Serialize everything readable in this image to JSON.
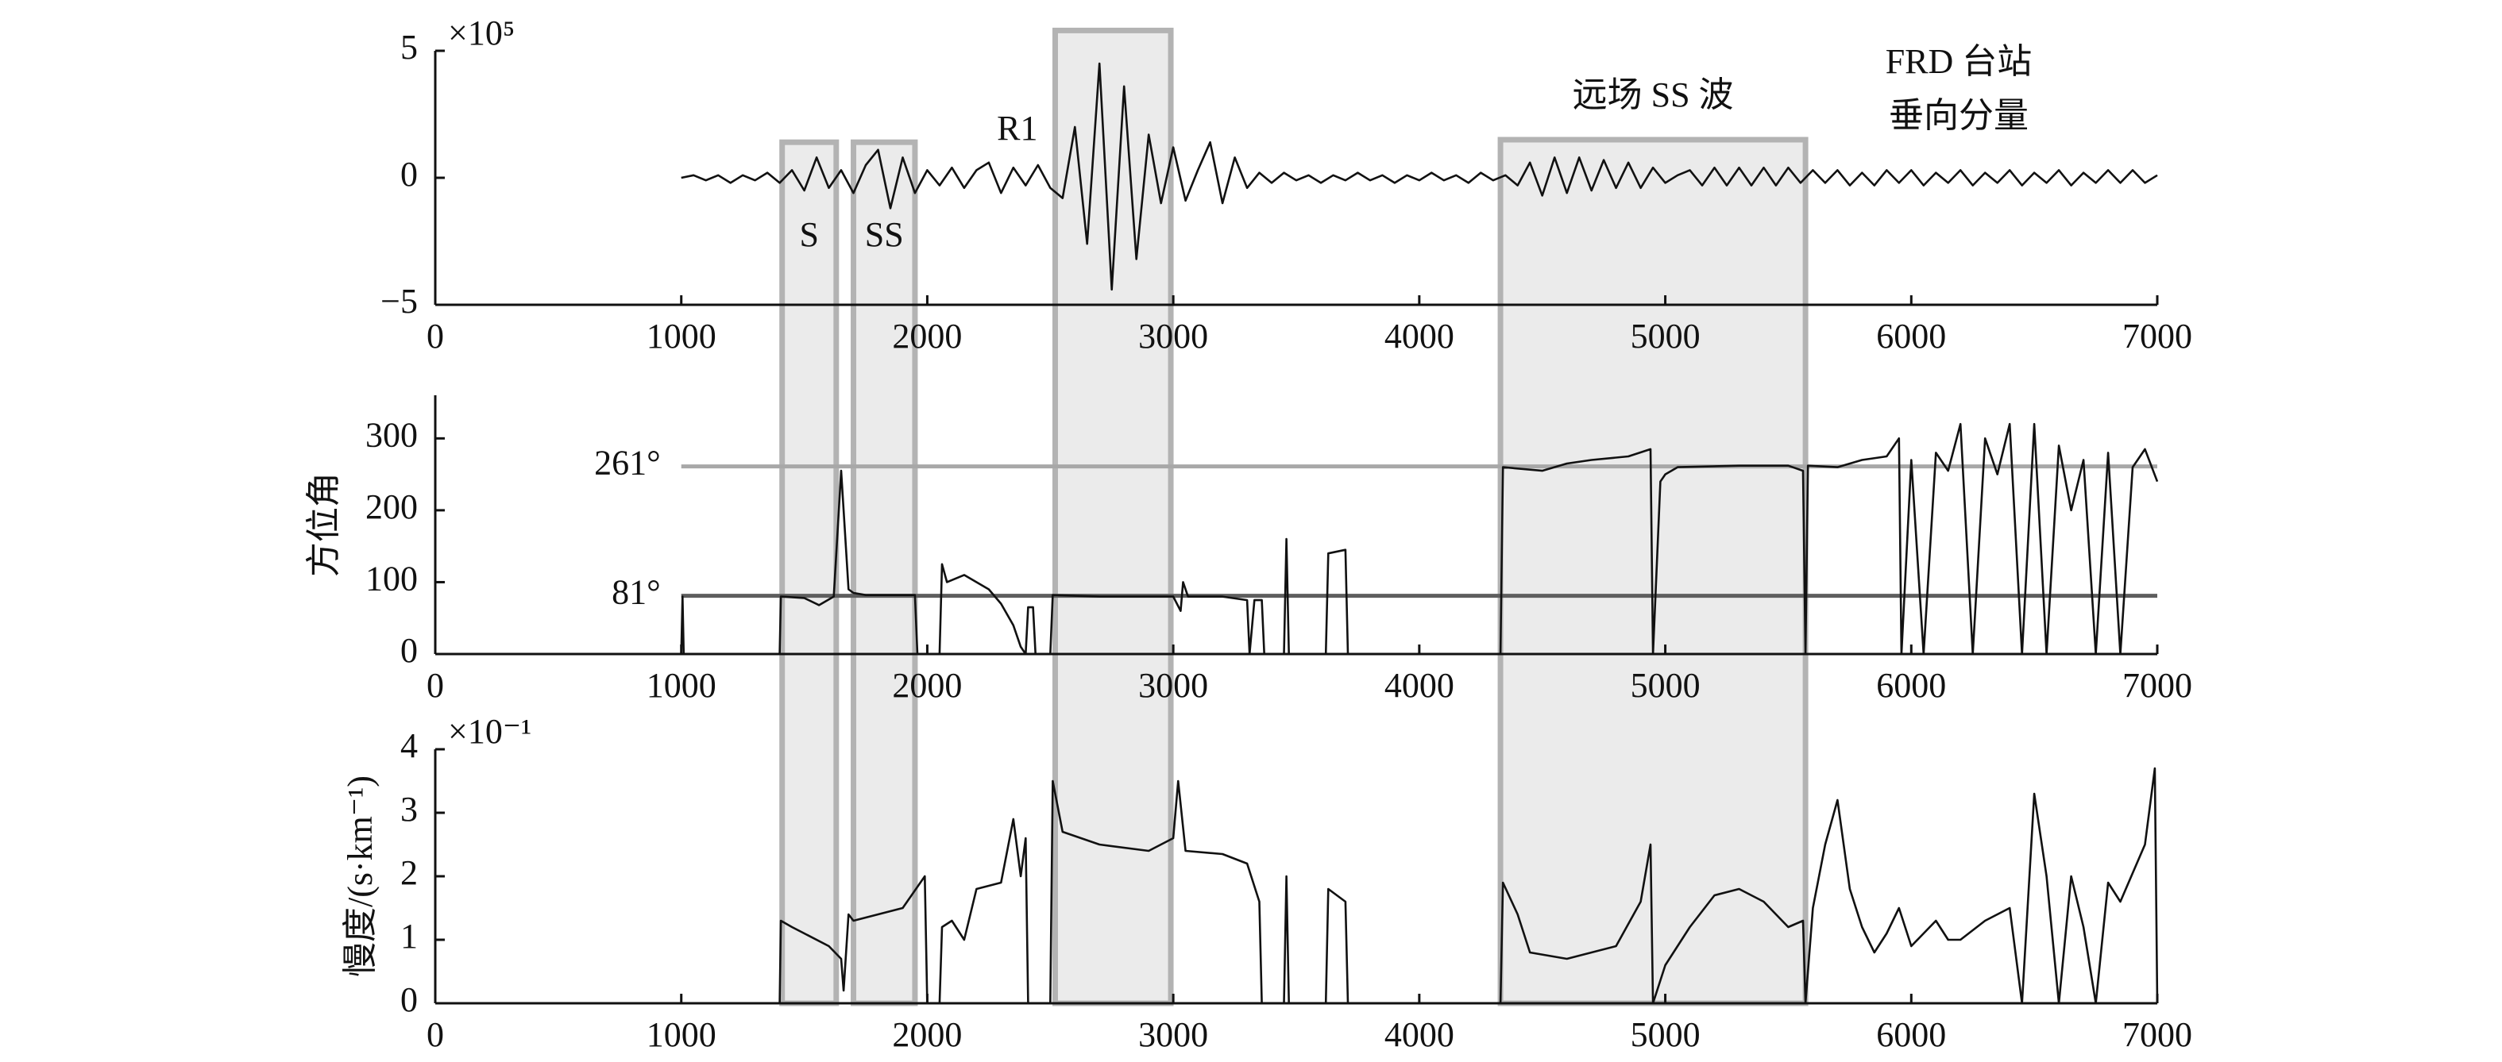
{
  "chart_data": [
    {
      "type": "line",
      "title_lines": [
        "FRD 台站",
        "垂向分量"
      ],
      "y_multiplier": "×10⁵",
      "color": "#111111",
      "xlim": [
        0,
        7000
      ],
      "xticks": [
        0,
        1000,
        2000,
        3000,
        4000,
        5000,
        6000,
        7000
      ],
      "ylim": [
        -5,
        5
      ],
      "yticks": [
        {
          "value": -5,
          "label": "−5"
        },
        0,
        5
      ],
      "x": [
        1000,
        1050,
        1100,
        1150,
        1200,
        1250,
        1300,
        1350,
        1400,
        1450,
        1500,
        1550,
        1600,
        1650,
        1700,
        1750,
        1800,
        1850,
        1900,
        1950,
        2000,
        2050,
        2100,
        2150,
        2200,
        2250,
        2300,
        2350,
        2400,
        2450,
        2500,
        2550,
        2600,
        2650,
        2700,
        2750,
        2800,
        2850,
        2900,
        2950,
        3000,
        3050,
        3100,
        3150,
        3200,
        3250,
        3300,
        3350,
        3400,
        3450,
        3500,
        3550,
        3600,
        3650,
        3700,
        3750,
        3800,
        3850,
        3900,
        3950,
        4000,
        4050,
        4100,
        4150,
        4200,
        4250,
        4300,
        4350,
        4400,
        4450,
        4500,
        4550,
        4600,
        4650,
        4700,
        4750,
        4800,
        4850,
        4900,
        4950,
        5000,
        5050,
        5100,
        5150,
        5200,
        5250,
        5300,
        5350,
        5400,
        5450,
        5500,
        5550,
        5600,
        5650,
        5700,
        5750,
        5800,
        5850,
        5900,
        5950,
        6000,
        6050,
        6100,
        6150,
        6200,
        6250,
        6300,
        6350,
        6400,
        6450,
        6500,
        6550,
        6600,
        6650,
        6700,
        6750,
        6800,
        6850,
        6900,
        6950,
        7000
      ],
      "values": [
        0,
        0.1,
        -0.1,
        0.1,
        -0.2,
        0.1,
        -0.1,
        0.2,
        -0.2,
        0.3,
        -0.5,
        0.8,
        -0.4,
        0.3,
        -0.6,
        0.5,
        1.1,
        -1.2,
        0.8,
        -0.6,
        0.3,
        -0.3,
        0.4,
        -0.4,
        0.3,
        0.6,
        -0.6,
        0.4,
        -0.3,
        0.5,
        -0.4,
        -0.8,
        2.0,
        -2.6,
        4.5,
        -4.4,
        3.6,
        -3.2,
        1.7,
        -1.0,
        1.2,
        -0.9,
        0.3,
        1.4,
        -1.0,
        0.8,
        -0.4,
        0.2,
        -0.2,
        0.2,
        -0.1,
        0.1,
        -0.2,
        0.1,
        -0.1,
        0.2,
        -0.1,
        0.1,
        -0.2,
        0.1,
        -0.1,
        0.2,
        -0.1,
        0.1,
        -0.2,
        0.2,
        -0.1,
        0.1,
        -0.3,
        0.6,
        -0.7,
        0.8,
        -0.6,
        0.8,
        -0.5,
        0.7,
        -0.4,
        0.6,
        -0.4,
        0.4,
        -0.2,
        0.1,
        0.3,
        -0.3,
        0.4,
        -0.3,
        0.4,
        -0.3,
        0.4,
        -0.3,
        0.4,
        -0.2,
        0.3,
        -0.2,
        0.3,
        -0.3,
        0.2,
        -0.3,
        0.3,
        -0.2,
        0.3,
        -0.3,
        0.2,
        -0.2,
        0.3,
        -0.3,
        0.2,
        -0.2,
        0.3,
        -0.3,
        0.2,
        -0.2,
        0.3,
        -0.3,
        0.2,
        -0.2,
        0.3,
        -0.2,
        0.3,
        -0.2,
        0.1
      ],
      "regions": [
        {
          "label": "S",
          "x": [
            1410,
            1630
          ],
          "top": 1.4,
          "label_position": "inside"
        },
        {
          "label": "SS",
          "x": [
            1700,
            1950
          ],
          "top": 1.4,
          "label_position": "inside"
        },
        {
          "label": "R1",
          "x": [
            2520,
            2990
          ],
          "top": 5.8,
          "label_position": "left"
        },
        {
          "label": "远场 SS 波",
          "x": [
            4330,
            5570
          ],
          "top": 1.5,
          "label_position": "above"
        }
      ]
    },
    {
      "type": "line",
      "ylabel": "方位角",
      "color": "#111111",
      "xlim": [
        0,
        7000
      ],
      "xticks": [
        0,
        1000,
        2000,
        3000,
        4000,
        5000,
        6000,
        7000
      ],
      "ylim": [
        0,
        360
      ],
      "yticks": [
        0,
        100,
        200,
        300
      ],
      "reference_lines": [
        {
          "value": 261,
          "label": "261°",
          "x": [
            1000,
            7000
          ],
          "color": "#a8a8a8"
        },
        {
          "value": 81,
          "label": "81°",
          "x": [
            1000,
            7000
          ],
          "color": "#5e5e5e"
        }
      ],
      "x": [
        1000,
        1005,
        1010,
        1400,
        1405,
        1500,
        1560,
        1620,
        1650,
        1680,
        1700,
        1750,
        1950,
        1960,
        2050,
        2060,
        2080,
        2150,
        2250,
        2300,
        2350,
        2380,
        2400,
        2410,
        2430,
        2440,
        2500,
        2510,
        2700,
        3000,
        3030,
        3040,
        3060,
        3200,
        3300,
        3310,
        3330,
        3360,
        3370,
        3450,
        3460,
        3470,
        3620,
        3630,
        3700,
        3710,
        4330,
        4340,
        4500,
        4600,
        4700,
        4850,
        4940,
        4950,
        4980,
        5000,
        5050,
        5300,
        5500,
        5560,
        5570,
        5580,
        5700,
        5800,
        5900,
        5950,
        5960,
        6000,
        6050,
        6100,
        6150,
        6200,
        6250,
        6300,
        6350,
        6400,
        6450,
        6500,
        6550,
        6600,
        6650,
        6700,
        6750,
        6800,
        6850,
        6900,
        6950,
        7000
      ],
      "values": [
        0,
        80,
        0,
        0,
        80,
        78,
        68,
        80,
        255,
        90,
        85,
        82,
        82,
        0,
        0,
        125,
        100,
        110,
        90,
        70,
        40,
        10,
        0,
        65,
        65,
        0,
        0,
        82,
        80,
        80,
        60,
        100,
        80,
        80,
        75,
        0,
        75,
        75,
        0,
        0,
        160,
        0,
        0,
        140,
        145,
        0,
        0,
        260,
        255,
        265,
        270,
        275,
        285,
        0,
        240,
        250,
        260,
        262,
        262,
        255,
        0,
        262,
        260,
        270,
        275,
        300,
        0,
        270,
        0,
        280,
        255,
        320,
        0,
        300,
        250,
        320,
        0,
        320,
        0,
        290,
        200,
        270,
        0,
        280,
        0,
        260,
        285,
        240
      ]
    },
    {
      "type": "line",
      "ylabel": "慢度/(s·km⁻¹)",
      "y_multiplier": "×10⁻¹",
      "color": "#111111",
      "xlim": [
        0,
        7000
      ],
      "xticks": [
        0,
        1000,
        2000,
        3000,
        4000,
        5000,
        6000,
        7000
      ],
      "ylim": [
        0,
        4
      ],
      "yticks": [
        0,
        1,
        2,
        3,
        4
      ],
      "x": [
        1400,
        1405,
        1450,
        1500,
        1600,
        1650,
        1660,
        1680,
        1700,
        1800,
        1900,
        1990,
        2000,
        2050,
        2060,
        2100,
        2150,
        2200,
        2300,
        2350,
        2380,
        2400,
        2410,
        2500,
        2510,
        2550,
        2700,
        2900,
        3000,
        3020,
        3050,
        3200,
        3300,
        3350,
        3360,
        3450,
        3460,
        3470,
        3620,
        3630,
        3700,
        3710,
        4330,
        4340,
        4400,
        4450,
        4600,
        4800,
        4900,
        4940,
        4950,
        5000,
        5100,
        5200,
        5300,
        5400,
        5500,
        5560,
        5570,
        5600,
        5650,
        5700,
        5750,
        5800,
        5850,
        5900,
        5950,
        6000,
        6050,
        6100,
        6150,
        6200,
        6300,
        6400,
        6450,
        6500,
        6550,
        6600,
        6650,
        6700,
        6750,
        6800,
        6850,
        6950,
        6990,
        7000
      ],
      "values": [
        0,
        1.3,
        1.2,
        1.1,
        0.9,
        0.7,
        0.2,
        1.4,
        1.3,
        1.4,
        1.5,
        2.0,
        0,
        0,
        1.2,
        1.3,
        1.0,
        1.8,
        1.9,
        2.9,
        2.0,
        2.6,
        0,
        0,
        3.5,
        2.7,
        2.5,
        2.4,
        2.6,
        3.5,
        2.4,
        2.35,
        2.2,
        1.6,
        0,
        0,
        2.0,
        0,
        0,
        1.8,
        1.6,
        0,
        0,
        1.9,
        1.4,
        0.8,
        0.7,
        0.9,
        1.6,
        2.5,
        0,
        0.6,
        1.2,
        1.7,
        1.8,
        1.6,
        1.2,
        1.3,
        0,
        1.5,
        2.5,
        3.2,
        1.8,
        1.2,
        0.8,
        1.1,
        1.5,
        0.9,
        1.1,
        1.3,
        1.0,
        1.0,
        1.3,
        1.5,
        0,
        3.3,
        2.0,
        0,
        2.0,
        1.2,
        0,
        1.9,
        1.6,
        2.5,
        3.7,
        0
      ]
    }
  ]
}
